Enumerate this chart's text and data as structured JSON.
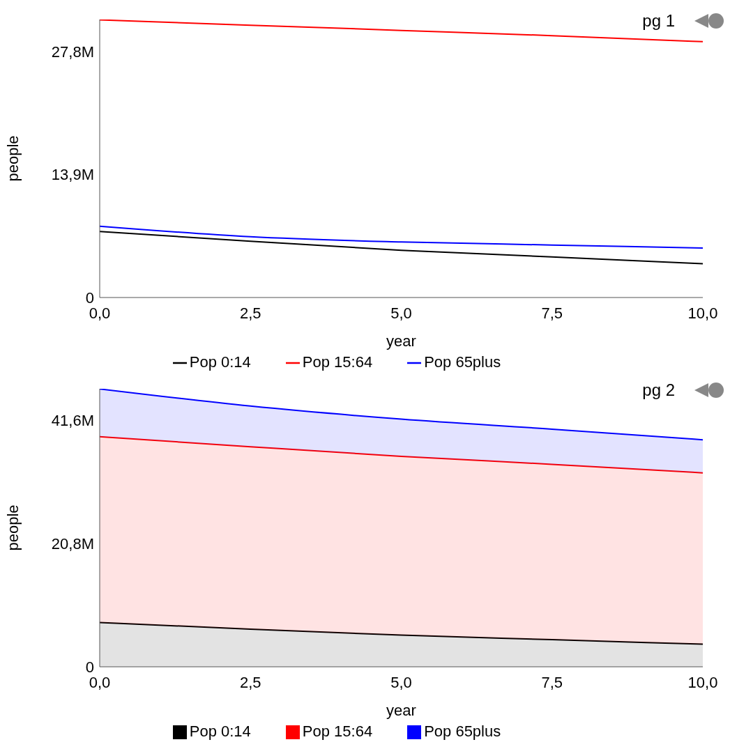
{
  "chart_data": [
    {
      "type": "line",
      "xlabel": "year",
      "ylabel": "people",
      "annotations": [
        "pg 1"
      ],
      "legend": "bottom",
      "x": [
        0,
        2.5,
        5,
        7.5,
        10
      ],
      "xlim": [
        0,
        10
      ],
      "xticks": [
        {
          "value": 0,
          "label": "0,0"
        },
        {
          "value": 2.5,
          "label": "2,5"
        },
        {
          "value": 5,
          "label": "5,0"
        },
        {
          "value": 7.5,
          "label": "7,5"
        },
        {
          "value": 10,
          "label": "10,0"
        }
      ],
      "ylim": [
        0,
        31400000
      ],
      "yticks": [
        {
          "value": 0,
          "label": "0"
        },
        {
          "value": 13900000,
          "label": "13,9M"
        },
        {
          "value": 27800000,
          "label": "27,8M"
        }
      ],
      "series": [
        {
          "name": "Pop 0:14",
          "color": "#000000",
          "values": [
            7460000,
            6360000,
            5340000,
            4580000,
            3810000
          ]
        },
        {
          "name": "Pop 15:64",
          "color": "#ff0000",
          "values": [
            31360000,
            30760000,
            30170000,
            29580000,
            28900000
          ]
        },
        {
          "name": "Pop 65plus",
          "color": "#0000ff",
          "values": [
            8050000,
            6860000,
            6270000,
            5930000,
            5590000
          ]
        }
      ]
    },
    {
      "type": "area",
      "stacked": true,
      "xlabel": "year",
      "ylabel": "people",
      "annotations": [
        "pg 2"
      ],
      "legend": "bottom",
      "x": [
        0,
        2.5,
        5,
        7.5,
        10
      ],
      "xlim": [
        0,
        10
      ],
      "xticks": [
        {
          "value": 0,
          "label": "0,0"
        },
        {
          "value": 2.5,
          "label": "2,5"
        },
        {
          "value": 5,
          "label": "5,0"
        },
        {
          "value": 7.5,
          "label": "7,5"
        },
        {
          "value": 10,
          "label": "10,0"
        }
      ],
      "ylim": [
        0,
        46900000
      ],
      "yticks": [
        {
          "value": 0,
          "label": "0"
        },
        {
          "value": 20800000,
          "label": "20,8M"
        },
        {
          "value": 41600000,
          "label": "41,6M"
        }
      ],
      "series": [
        {
          "name": "Pop 0:14",
          "color": "#000000",
          "values": [
            7460000,
            6360000,
            5340000,
            4580000,
            3810000
          ]
        },
        {
          "name": "Pop 15:64",
          "color": "#ff0000",
          "values": [
            31360000,
            30760000,
            30170000,
            29580000,
            28900000
          ]
        },
        {
          "name": "Pop 65plus",
          "color": "#0000ff",
          "values": [
            8050000,
            6860000,
            6270000,
            5930000,
            5590000
          ]
        }
      ]
    }
  ]
}
